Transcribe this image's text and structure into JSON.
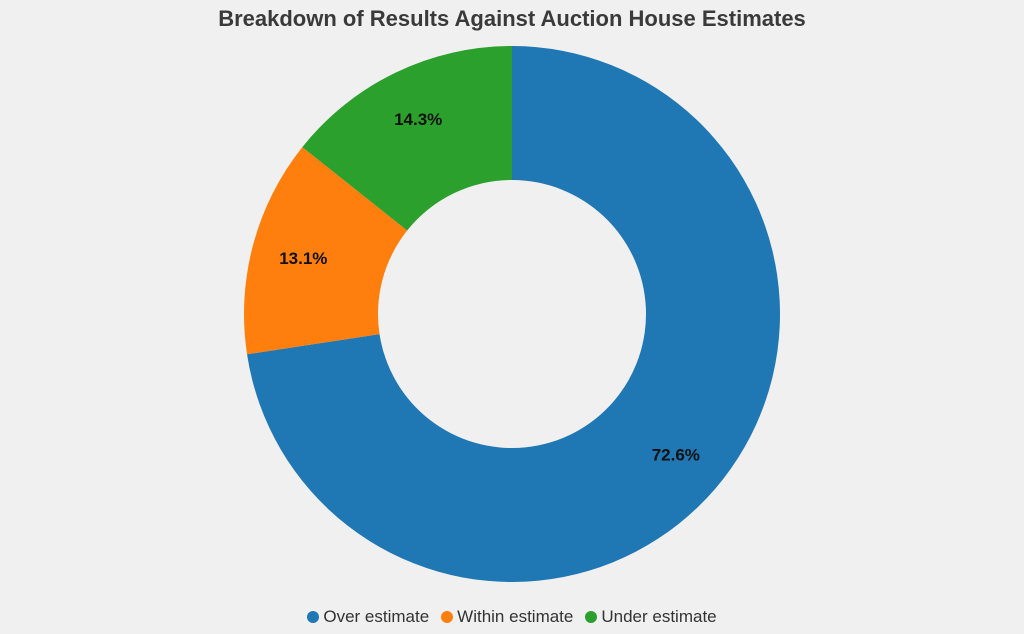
{
  "chart_data": {
    "type": "pie",
    "variant": "donut",
    "title": "Breakdown of Results Against Auction House Estimates",
    "categories": [
      "Over estimate",
      "Within estimate",
      "Under estimate"
    ],
    "values": [
      72.6,
      13.1,
      14.3
    ],
    "labels": [
      "72.6%",
      "13.1%",
      "14.3%"
    ],
    "colors": [
      "#1f77b4",
      "#ff7f0e",
      "#2ca02c"
    ],
    "start": "12 o'clock",
    "direction": "clockwise",
    "legend_position": "bottom"
  }
}
